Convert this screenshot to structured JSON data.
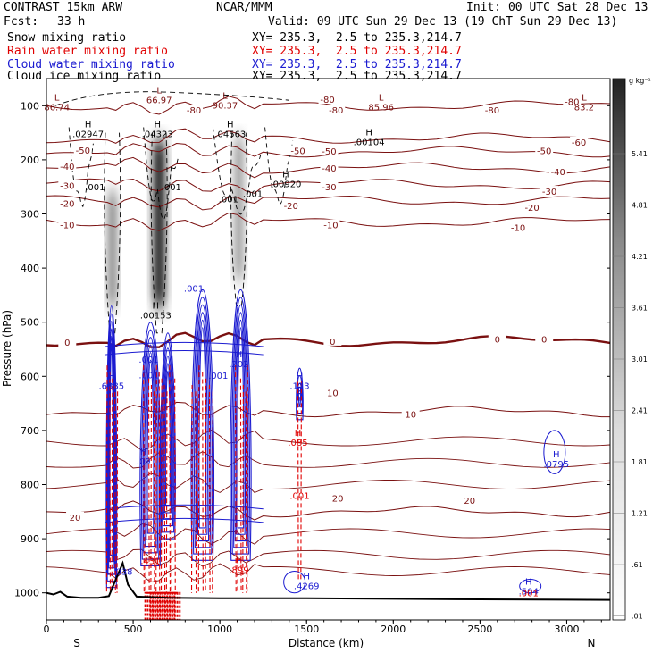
{
  "header": {
    "model": "CONTRAST 15km ARW",
    "center": "NCAR/MMM",
    "init": "Init: 00 UTC Sat 28 Dec 13",
    "fcst_label": "Fcst:",
    "fcst_value": "33 h",
    "valid": "Valid: 09 UTC Sun 29 Dec 13 (19 ChT Sun 29 Dec 13)",
    "fields": [
      {
        "label": "Snow mixing ratio",
        "xy": "XY= 235.3,  2.5 to 235.3,214.7",
        "color": "#000000"
      },
      {
        "label": "Rain water mixing ratio",
        "xy": "XY= 235.3,  2.5 to 235.3,214.7",
        "color": "#e00000"
      },
      {
        "label": "Cloud water mixing ratio",
        "xy": "XY= 235.3,  2.5 to 235.3,214.7",
        "color": "#1a1ad0"
      },
      {
        "label": "Cloud ice mixing ratio",
        "xy": "XY= 235.3,  2.5 to 235.3,214.7",
        "color": "#000000"
      }
    ]
  },
  "colors": {
    "temperature": "#7a1010",
    "rain": "#e00000",
    "cloud_water": "#1a1ad0",
    "snow": "#000000",
    "shading_max": "#222222"
  },
  "chart_data": {
    "type": "cross-section",
    "xlabel": "Distance (km)",
    "ylabel": "Pressure (hPa)",
    "xlim": [
      0,
      3250
    ],
    "ylim": [
      1050,
      50
    ],
    "x_ticks": [
      "0",
      "500",
      "1000",
      "1500",
      "2000",
      "2500",
      "3000"
    ],
    "y_ticks": [
      "100",
      "200",
      "300",
      "400",
      "500",
      "600",
      "700",
      "800",
      "900",
      "1000"
    ],
    "y_tick_values": [
      100,
      200,
      300,
      400,
      500,
      600,
      700,
      800,
      900,
      1000
    ],
    "x_tick_values": [
      0,
      500,
      1000,
      1500,
      2000,
      2500,
      3000
    ],
    "end_labels": {
      "left": "S",
      "right": "N"
    },
    "colorbar": {
      "unit": "g kg⁻¹",
      "labels": [
        "5.41",
        "4.81",
        "4.21",
        "3.61",
        "3.01",
        "2.41",
        "1.81",
        "1.21",
        ".61",
        ".01"
      ]
    },
    "temperature_contours": [
      {
        "label": "-80",
        "p": 100
      },
      {
        "label": "-60",
        "p": 160
      },
      {
        "label": "-50",
        "p": 185
      },
      {
        "label": "-40",
        "p": 215
      },
      {
        "label": "-30",
        "p": 245
      },
      {
        "label": "-20",
        "p": 275
      },
      {
        "label": "-10",
        "p": 315
      },
      {
        "label": "0",
        "p": 535
      },
      {
        "label": "10",
        "p": 665
      },
      {
        "label": "20",
        "p": 850
      }
    ],
    "temperature_labels": [
      {
        "t": "-80",
        "x": 850,
        "p": 108
      },
      {
        "t": "-80",
        "x": 1670,
        "p": 108
      },
      {
        "t": "-80",
        "x": 2570,
        "p": 108
      },
      {
        "t": "-80",
        "x": 3030,
        "p": 92
      },
      {
        "t": "-80",
        "x": 1620,
        "p": 88
      },
      {
        "t": "-60",
        "x": 3070,
        "p": 167
      },
      {
        "t": "-50",
        "x": 210,
        "p": 182
      },
      {
        "t": "-50",
        "x": 1450,
        "p": 183
      },
      {
        "t": "-50",
        "x": 1630,
        "p": 184
      },
      {
        "t": "-50",
        "x": 2870,
        "p": 183
      },
      {
        "t": "-40",
        "x": 120,
        "p": 212
      },
      {
        "t": "-40",
        "x": 1630,
        "p": 215
      },
      {
        "t": "-40",
        "x": 2950,
        "p": 222
      },
      {
        "t": "-30",
        "x": 120,
        "p": 247
      },
      {
        "t": "-30",
        "x": 1630,
        "p": 250
      },
      {
        "t": "-30",
        "x": 2900,
        "p": 258
      },
      {
        "t": "-20",
        "x": 120,
        "p": 280
      },
      {
        "t": "-20",
        "x": 1410,
        "p": 284
      },
      {
        "t": "-20",
        "x": 2800,
        "p": 288
      },
      {
        "t": "-10",
        "x": 120,
        "p": 320
      },
      {
        "t": "-10",
        "x": 1640,
        "p": 320
      },
      {
        "t": "-10",
        "x": 2720,
        "p": 325
      },
      {
        "t": "0",
        "x": 120,
        "p": 537
      },
      {
        "t": "0",
        "x": 1650,
        "p": 535
      },
      {
        "t": "0",
        "x": 2600,
        "p": 531
      },
      {
        "t": "0",
        "x": 2870,
        "p": 531
      },
      {
        "t": "10",
        "x": 2100,
        "p": 670
      },
      {
        "t": "10",
        "x": 1650,
        "p": 630
      },
      {
        "t": "20",
        "x": 165,
        "p": 860
      },
      {
        "t": "20",
        "x": 1680,
        "p": 825
      },
      {
        "t": "20",
        "x": 2440,
        "p": 829
      }
    ],
    "extrema": [
      {
        "type": "L",
        "value": "86.74",
        "x": 60,
        "p": 95,
        "color": "temperature"
      },
      {
        "type": "L",
        "value": "66.97",
        "x": 650,
        "p": 82,
        "color": "temperature"
      },
      {
        "type": "L",
        "value": "90.37",
        "x": 1030,
        "p": 92,
        "color": "temperature"
      },
      {
        "type": "L",
        "value": "85.96",
        "x": 1930,
        "p": 95,
        "color": "temperature"
      },
      {
        "type": "L",
        "value": "83.2",
        "x": 3100,
        "p": 95,
        "color": "temperature"
      },
      {
        "type": "H",
        "value": ".02947",
        "x": 240,
        "p": 145,
        "color": "snow"
      },
      {
        "type": "H",
        "value": ".04323",
        "x": 640,
        "p": 145,
        "color": "snow"
      },
      {
        "type": "H",
        "value": ".04563",
        "x": 1060,
        "p": 145,
        "color": "snow"
      },
      {
        "type": "H",
        "value": ".00104",
        "x": 1860,
        "p": 160,
        "color": "snow"
      },
      {
        "type": "H",
        "value": ".00920",
        "x": 1380,
        "p": 237,
        "color": "snow"
      },
      {
        "type": "H",
        "value": ".00153",
        "x": 630,
        "p": 480,
        "color": "snow"
      },
      {
        "type": "H",
        "value": ".6385",
        "x": 375,
        "p": 610,
        "color": "cloud_water"
      },
      {
        "type": "H",
        "value": ".202",
        "x": 1110,
        "p": 570,
        "color": "cloud_water"
      },
      {
        "type": "H",
        "value": ".113",
        "x": 1460,
        "p": 610,
        "color": "cloud_water"
      },
      {
        "type": "H",
        "value": ".0795",
        "x": 2940,
        "p": 755,
        "color": "cloud_water"
      },
      {
        "type": "H",
        "value": ".4269",
        "x": 1500,
        "p": 980,
        "color": "cloud_water"
      },
      {
        "type": "H",
        "value": ".09",
        "x": 560,
        "p": 750,
        "color": "cloud_water"
      },
      {
        "type": "H",
        "value": ".085",
        "x": 1450,
        "p": 715,
        "color": "rain"
      },
      {
        "type": "H",
        "value": ".899",
        "x": 1110,
        "p": 950,
        "color": "rain"
      },
      {
        "type": "H",
        "value": ".504",
        "x": 2780,
        "p": 990,
        "color": "cloud_water"
      }
    ],
    "small_labels": [
      {
        "t": ".001",
        "x": 280,
        "p": 250,
        "color": "snow"
      },
      {
        "t": ".001",
        "x": 720,
        "p": 250,
        "color": "snow"
      },
      {
        "t": ".001",
        "x": 1050,
        "p": 272,
        "color": "snow"
      },
      {
        "t": ".001",
        "x": 1190,
        "p": 262,
        "color": "snow"
      },
      {
        "t": ".001",
        "x": 850,
        "p": 437,
        "color": "cloud_water"
      },
      {
        "t": ".001",
        "x": 590,
        "p": 568,
        "color": "cloud_water"
      },
      {
        "t": ".001",
        "x": 590,
        "p": 597,
        "color": "cloud_water"
      },
      {
        "t": ".001",
        "x": 990,
        "p": 598,
        "color": "cloud_water"
      },
      {
        "t": ".001",
        "x": 1460,
        "p": 820,
        "color": "rain"
      },
      {
        "t": ".001",
        "x": 2780,
        "p": 1000,
        "color": "rain"
      },
      {
        "t": ".431",
        "x": 600,
        "p": 940,
        "color": "rain"
      },
      {
        "t": ".038",
        "x": 440,
        "p": 960,
        "color": "cloud_water"
      }
    ],
    "snow_shading": [
      {
        "x": 650,
        "p_top": 165,
        "p_bot": 470,
        "width_km": 70,
        "max": 5.4
      },
      {
        "x": 380,
        "p_top": 260,
        "p_bot": 470,
        "width_km": 50,
        "max": 3.0
      },
      {
        "x": 1110,
        "p_top": 160,
        "p_bot": 420,
        "width_km": 50,
        "max": 2.4
      }
    ],
    "terrain": [
      [
        0,
        1000
      ],
      [
        40,
        1003
      ],
      [
        80,
        998
      ],
      [
        120,
        1007
      ],
      [
        200,
        1009
      ],
      [
        300,
        1009
      ],
      [
        360,
        1006
      ],
      [
        400,
        975
      ],
      [
        440,
        945
      ],
      [
        470,
        985
      ],
      [
        520,
        1007
      ],
      [
        700,
        1009
      ],
      [
        1000,
        1010
      ],
      [
        1500,
        1010
      ],
      [
        2000,
        1011
      ],
      [
        2500,
        1012
      ],
      [
        3250,
        1013
      ]
    ]
  }
}
